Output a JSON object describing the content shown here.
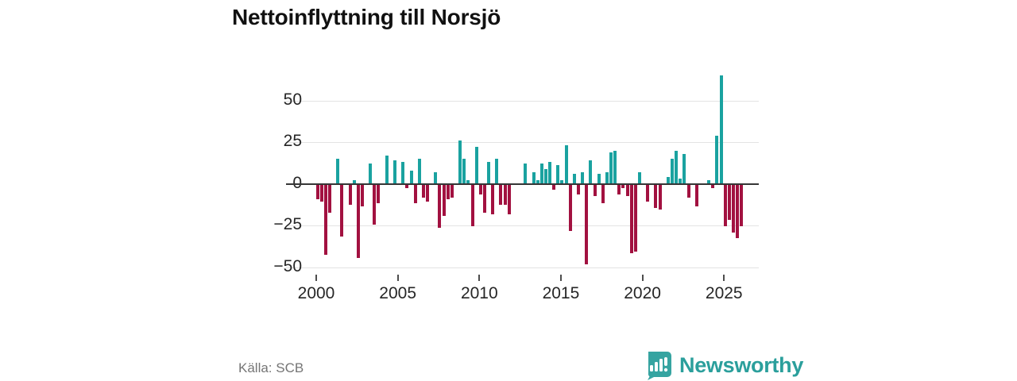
{
  "title": "Nettoinflyttning till Norsjö",
  "source": "Källa: SCB",
  "logo": {
    "text": "Newsworthy"
  },
  "colors": {
    "positive_bar": "#1aa2a0",
    "negative_bar": "#a21140",
    "zero_line": "#363636",
    "gridline": "#e3e3e3",
    "logo_teal": "#36a4a1",
    "logo_text": "#2b9f9c"
  },
  "chart_data": {
    "type": "bar",
    "title": "Nettoinflyttning till Norsjö",
    "xlabel": "",
    "ylabel": "",
    "frequency": "quarterly",
    "start_period": "2000Q1",
    "end_period": "2026Q1",
    "x_tick_labels": [
      "2000",
      "2005",
      "2010",
      "2015",
      "2020",
      "2025"
    ],
    "y_ticks": [
      50,
      25,
      0,
      -25,
      -50
    ],
    "ylim": [
      -55,
      70
    ],
    "grid": "horizontal",
    "legend": "none",
    "values": [
      -9,
      -10,
      -42,
      -17,
      0,
      15,
      -31,
      0,
      -12,
      2,
      -44,
      -13,
      0,
      12,
      -24,
      -11,
      0,
      17,
      0,
      14,
      0,
      13,
      -2,
      8,
      -11,
      15,
      -8,
      -10,
      0,
      7,
      -26,
      -19,
      -9,
      -8,
      0,
      26,
      15,
      2,
      -25,
      22,
      -6,
      -17,
      13,
      -18,
      15,
      -12,
      -12,
      -18,
      0,
      0,
      0,
      12,
      0,
      7,
      2,
      12,
      9,
      13,
      -3,
      11,
      2,
      23,
      -28,
      6,
      -6,
      7,
      -48,
      14,
      -7,
      6,
      -11,
      7,
      19,
      20,
      -6,
      -2,
      -7,
      -41,
      -40,
      7,
      0,
      -10,
      0,
      -14,
      -15,
      0,
      4,
      15,
      20,
      3,
      18,
      -8,
      0,
      -13,
      0,
      0,
      2,
      -2,
      29,
      65,
      -25,
      -21,
      -29,
      -32,
      -25
    ]
  }
}
